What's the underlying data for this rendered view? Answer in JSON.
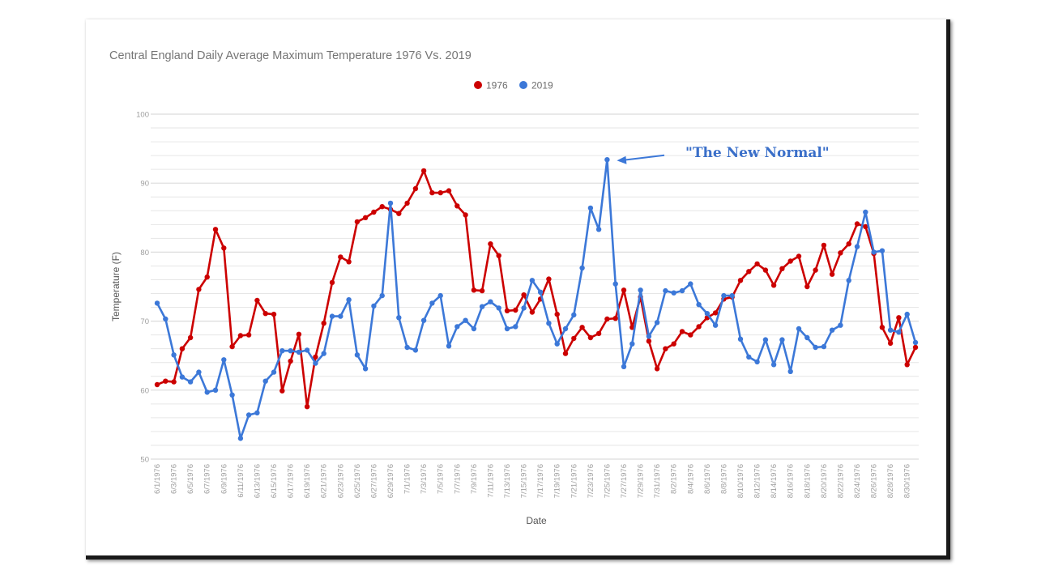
{
  "chart_data": {
    "type": "line",
    "title": "Central England Daily Average Maximum Temperature 1976 Vs. 2019",
    "xlabel": "Date",
    "ylabel": "Temperature (F)",
    "ylim": [
      50,
      100
    ],
    "yticks": [
      "100",
      "90",
      "80",
      "70",
      "60",
      "50"
    ],
    "ytick_values": [
      100,
      90,
      80,
      70,
      60,
      50
    ],
    "grid": true,
    "legend_position": "top-center",
    "x_tick_labels": [
      "6/1/1976",
      "6/3/1976",
      "6/5/1976",
      "6/7/1976",
      "6/9/1976",
      "6/11/1976",
      "6/13/1976",
      "6/15/1976",
      "6/17/1976",
      "6/19/1976",
      "6/21/1976",
      "6/23/1976",
      "6/25/1976",
      "6/27/1976",
      "6/29/1976",
      "7/1/1976",
      "7/3/1976",
      "7/5/1976",
      "7/7/1976",
      "7/9/1976",
      "7/11/1976",
      "7/13/1976",
      "7/15/1976",
      "7/17/1976",
      "7/19/1976",
      "7/21/1976",
      "7/23/1976",
      "7/25/1976",
      "7/27/1976",
      "7/29/1976",
      "7/31/1976",
      "8/2/1976",
      "8/4/1976",
      "8/6/1976",
      "8/8/1976",
      "8/10/1976",
      "8/12/1976",
      "8/14/1976",
      "8/16/1976",
      "8/18/1976",
      "8/20/1976",
      "8/22/1976",
      "8/24/1976",
      "8/26/1976",
      "8/28/1976",
      "8/30/1976"
    ],
    "x_count": 92,
    "series": [
      {
        "name": "1976",
        "color": "#cc0000",
        "values": [
          60.8,
          61.3,
          61.2,
          66.0,
          67.6,
          74.6,
          76.4,
          83.3,
          80.6,
          66.3,
          67.9,
          68.0,
          73.0,
          71.1,
          71.0,
          59.9,
          64.2,
          68.1,
          57.6,
          64.8,
          69.7,
          75.6,
          79.3,
          78.6,
          84.4,
          85.0,
          85.8,
          86.6,
          86.2,
          85.6,
          87.1,
          89.2,
          91.8,
          88.6,
          88.6,
          88.9,
          86.7,
          85.4,
          74.5,
          74.4,
          81.2,
          79.5,
          71.5,
          71.6,
          73.8,
          71.3,
          73.2,
          76.1,
          71.0,
          65.3,
          67.5,
          69.1,
          67.6,
          68.2,
          70.3,
          70.4,
          74.5,
          69.1,
          73.5,
          67.1,
          63.1,
          66.0,
          66.7,
          68.5,
          68.0,
          69.2,
          70.5,
          71.2,
          73.2,
          73.5,
          75.9,
          77.2,
          78.3,
          77.4,
          75.2,
          77.6,
          78.7,
          79.4,
          75.0,
          77.4,
          81.0,
          76.8,
          79.9,
          81.2,
          84.1,
          83.7,
          79.8,
          69.1,
          66.8,
          70.5,
          63.7,
          66.2
        ]
      },
      {
        "name": "2019",
        "color": "#3c78d8",
        "values": [
          72.6,
          70.3,
          65.1,
          61.9,
          61.2,
          62.6,
          59.7,
          60.0,
          64.4,
          59.3,
          53.0,
          56.4,
          56.7,
          61.3,
          62.6,
          65.7,
          65.7,
          65.5,
          65.8,
          63.9,
          65.3,
          70.7,
          70.7,
          73.1,
          65.1,
          63.1,
          72.2,
          73.7,
          87.1,
          70.5,
          66.2,
          65.8,
          70.1,
          72.6,
          73.7,
          66.4,
          69.2,
          70.1,
          68.9,
          72.1,
          72.8,
          71.9,
          68.9,
          69.2,
          71.9,
          75.9,
          74.2,
          69.7,
          66.7,
          68.9,
          70.9,
          77.7,
          86.4,
          83.3,
          93.4,
          75.4,
          63.4,
          66.7,
          74.5,
          67.8,
          69.8,
          74.4,
          74.1,
          74.4,
          75.4,
          72.4,
          71.1,
          69.4,
          73.7,
          73.7,
          67.4,
          64.8,
          64.1,
          67.3,
          63.7,
          67.3,
          62.7,
          68.9,
          67.6,
          66.2,
          66.3,
          68.7,
          69.4,
          75.9,
          80.8,
          85.8,
          80.0,
          80.2,
          68.7,
          68.4,
          71.0,
          66.9
        ]
      }
    ],
    "annotation": {
      "text": "\"The New Normal\"",
      "points_to_series": "2019",
      "points_to_index": 54,
      "color": "#3a6fc9"
    },
    "gridline_color": "#e6e6e6"
  }
}
